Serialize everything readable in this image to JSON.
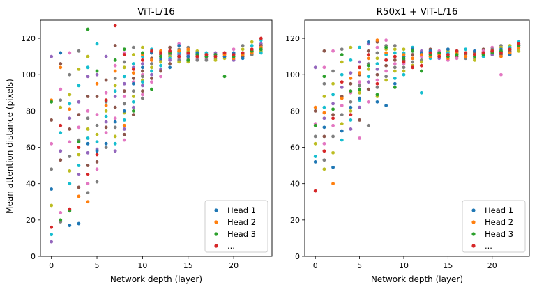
{
  "colors": [
    "#1f77b4",
    "#ff7f0e",
    "#2ca02c",
    "#d62728",
    "#9467bd",
    "#8c564b",
    "#e377c2",
    "#7f7f7f",
    "#bcbd22",
    "#17becf"
  ],
  "legend": [
    {
      "label": "Head 1",
      "color": "#1f77b4"
    },
    {
      "label": "Head 2",
      "color": "#ff7f0e"
    },
    {
      "label": "Head 3",
      "color": "#2ca02c"
    },
    {
      "label": "...",
      "color": "#d62728"
    }
  ],
  "chart_data": [
    {
      "type": "scatter",
      "title": "ViT-L/16",
      "xlabel": "Network depth (layer)",
      "ylabel": "Mean attention distance (pixels)",
      "xlim": [
        -1.2,
        24.2
      ],
      "ylim": [
        0,
        130
      ],
      "xticks": [
        0,
        5,
        10,
        15,
        20
      ],
      "yticks": [
        0,
        20,
        40,
        60,
        80,
        100,
        120
      ],
      "legend_position": "lower-right",
      "series": [
        {
          "name": "Head 1",
          "x": [
            0,
            1,
            2,
            3,
            4,
            5,
            6,
            7,
            8,
            9,
            10,
            11,
            12,
            13,
            14,
            15,
            16,
            17,
            18,
            19,
            20,
            21,
            22,
            23
          ],
          "y": [
            37,
            112,
            17,
            18,
            62,
            58,
            62,
            74,
            80,
            95,
            104,
            112,
            109,
            104,
            116,
            110,
            112,
            110,
            111,
            110,
            112,
            109,
            113,
            114
          ]
        },
        {
          "name": "Head 2",
          "x": [
            0,
            1,
            2,
            3,
            4,
            5,
            6,
            7,
            8,
            9,
            10,
            11,
            12,
            13,
            14,
            15,
            16,
            17,
            18,
            19,
            20,
            21,
            22,
            23
          ],
          "y": [
            86,
            104,
            81,
            33,
            30,
            95,
            83,
            102,
            72,
            101,
            111,
            108,
            113,
            112,
            113,
            114,
            110,
            111,
            110,
            111,
            109,
            111,
            112,
            115
          ]
        },
        {
          "name": "Head 3",
          "x": [
            0,
            1,
            2,
            3,
            4,
            5,
            6,
            7,
            8,
            9,
            10,
            11,
            12,
            13,
            14,
            15,
            16,
            17,
            18,
            19,
            20,
            21,
            22,
            23
          ],
          "y": [
            85,
            20,
            25,
            63,
            125,
            102,
            86,
            108,
            114,
            80,
            112,
            92,
            110,
            112,
            110,
            108,
            111,
            110,
            111,
            99,
            110,
            112,
            113,
            114
          ]
        },
        {
          "name": "...",
          "x": [
            0,
            1,
            2,
            3,
            4,
            5,
            6,
            7,
            8,
            9,
            10,
            11,
            12,
            13,
            14,
            15,
            16,
            17,
            18,
            19,
            20,
            21,
            22,
            23
          ],
          "y": [
            16,
            72,
            26,
            60,
            45,
            56,
            86,
            127,
            111,
            103,
            108,
            113,
            112,
            113,
            110,
            112,
            110,
            111,
            110,
            112,
            111,
            112,
            114,
            120
          ]
        }
      ],
      "other_heads": [
        {
          "x": 0,
          "y": [
            110,
            75,
            62,
            48,
            28,
            12,
            8
          ]
        },
        {
          "x": 1,
          "y": [
            106,
            92,
            86,
            82,
            68,
            58,
            53,
            24,
            19
          ]
        },
        {
          "x": 2,
          "y": [
            112,
            100,
            89,
            84,
            76,
            70,
            63,
            55,
            47,
            40
          ]
        },
        {
          "x": 3,
          "y": [
            113,
            103,
            94,
            85,
            78,
            71,
            64,
            56,
            50,
            45,
            38
          ]
        },
        {
          "x": 4,
          "y": [
            110,
            104,
            99,
            88,
            80,
            76,
            70,
            65,
            57,
            50,
            40,
            35
          ]
        },
        {
          "x": 5,
          "y": [
            117,
            100,
            88,
            78,
            72,
            67,
            63,
            59,
            52,
            48,
            41
          ]
        },
        {
          "x": 6,
          "y": [
            110,
            97,
            90,
            85,
            80,
            77,
            74,
            71,
            68,
            60
          ]
        },
        {
          "x": 7,
          "y": [
            116,
            105,
            98,
            94,
            91,
            88,
            82,
            76,
            71,
            66,
            62,
            58
          ]
        },
        {
          "x": 8,
          "y": [
            112,
            107,
            104,
            99,
            95,
            91,
            88,
            84,
            79,
            75,
            70,
            67,
            64
          ]
        },
        {
          "x": 9,
          "y": [
            115,
            111,
            106,
            104,
            98,
            96,
            91,
            88,
            85,
            82,
            78
          ]
        },
        {
          "x": 10,
          "y": [
            115,
            110,
            106,
            102,
            100,
            99,
            97,
            96,
            94,
            91,
            89,
            87
          ]
        },
        {
          "x": 11,
          "y": [
            114,
            112,
            109,
            108,
            106,
            104,
            102,
            100,
            98,
            96
          ]
        },
        {
          "x": 12,
          "y": [
            113,
            111,
            110,
            108,
            107,
            105,
            103,
            102,
            99
          ]
        },
        {
          "x": 13,
          "y": [
            115,
            113,
            111,
            110,
            109,
            108,
            106
          ]
        },
        {
          "x": 14,
          "y": [
            117,
            114,
            113,
            112,
            111,
            110,
            109,
            108,
            107
          ]
        },
        {
          "x": 15,
          "y": [
            115,
            113,
            112,
            111,
            110,
            109,
            108,
            107
          ]
        },
        {
          "x": 16,
          "y": [
            113,
            112,
            111,
            110,
            109,
            108
          ]
        },
        {
          "x": 17,
          "y": [
            112,
            111,
            110,
            109,
            108
          ]
        },
        {
          "x": 18,
          "y": [
            112,
            111,
            110,
            109,
            108
          ]
        },
        {
          "x": 19,
          "y": [
            112,
            111,
            110,
            109
          ]
        },
        {
          "x": 20,
          "y": [
            114,
            112,
            111,
            110,
            108
          ]
        },
        {
          "x": 21,
          "y": [
            116,
            114,
            112,
            111,
            110
          ]
        },
        {
          "x": 22,
          "y": [
            118,
            116,
            114,
            113,
            112,
            111
          ]
        },
        {
          "x": 23,
          "y": [
            119,
            117,
            116,
            115,
            114,
            113,
            112
          ]
        }
      ]
    },
    {
      "type": "scatter",
      "title": "R50x1 + ViT-L/16",
      "xlabel": "Network depth (layer)",
      "ylabel": "",
      "xlim": [
        -1.2,
        24.2
      ],
      "ylim": [
        0,
        130
      ],
      "xticks": [
        0,
        5,
        10,
        15,
        20
      ],
      "yticks": [
        0,
        20,
        40,
        60,
        80,
        100,
        120
      ],
      "legend_position": "lower-right",
      "series": [
        {
          "name": "Head 1",
          "x": [
            0,
            1,
            2,
            3,
            4,
            5,
            6,
            7,
            8,
            9,
            10,
            11,
            12,
            13,
            14,
            15,
            16,
            17,
            18,
            19,
            20,
            21,
            22,
            23
          ],
          "y": [
            52,
            71,
            49,
            69,
            82,
            87,
            118,
            85,
            83,
            95,
            110,
            114,
            112,
            113,
            112,
            114,
            113,
            112,
            113,
            112,
            113,
            114,
            111,
            116
          ]
        },
        {
          "name": "Head 2",
          "x": [
            0,
            1,
            2,
            3,
            4,
            5,
            6,
            7,
            8,
            9,
            10,
            11,
            12,
            13,
            14,
            15,
            16,
            17,
            18,
            19,
            20,
            21,
            22,
            23
          ],
          "y": [
            82,
            79,
            40,
            87,
            98,
            101,
            109,
            119,
            112,
            110,
            111,
            109,
            111,
            110,
            111,
            109,
            112,
            110,
            111,
            112,
            113,
            110,
            112,
            115
          ]
        },
        {
          "name": "Head 3",
          "x": [
            0,
            1,
            2,
            3,
            4,
            5,
            6,
            7,
            8,
            9,
            10,
            11,
            12,
            13,
            14,
            15,
            16,
            17,
            18,
            19,
            20,
            21,
            22,
            23
          ],
          "y": [
            72,
            99,
            81,
            111,
            91,
            92,
            105,
            89,
            115,
            93,
            109,
            113,
            102,
            111,
            112,
            110,
            111,
            112,
            110,
            111,
            112,
            113,
            114,
            116
          ]
        },
        {
          "name": "...",
          "x": [
            0,
            1,
            2,
            3,
            4,
            5,
            6,
            7,
            8,
            9,
            10,
            11,
            12,
            13,
            14,
            15,
            16,
            17,
            18,
            19,
            20,
            21,
            22,
            23
          ],
          "y": [
            36,
            58,
            76,
            96,
            78,
            104,
            111,
            95,
            108,
            110,
            107,
            104,
            105,
            112,
            110,
            111,
            113,
            112,
            111,
            112,
            113,
            112,
            114,
            117
          ]
        }
      ],
      "other_heads": [
        {
          "x": 0,
          "y": [
            104,
            80,
            73,
            66,
            62,
            55
          ]
        },
        {
          "x": 1,
          "y": [
            113,
            104,
            95,
            88,
            82,
            76,
            66,
            62,
            53,
            48
          ]
        },
        {
          "x": 2,
          "y": [
            113,
            102,
            95,
            89,
            84,
            78,
            72,
            66,
            57
          ]
        },
        {
          "x": 3,
          "y": [
            114,
            107,
            100,
            93,
            88,
            83,
            78,
            73,
            64
          ]
        },
        {
          "x": 4,
          "y": [
            115,
            108,
            101,
            95,
            90,
            85,
            80,
            75,
            70
          ]
        },
        {
          "x": 5,
          "y": [
            115,
            107,
            100,
            96,
            94,
            90,
            86,
            82,
            75,
            65
          ]
        },
        {
          "x": 6,
          "y": [
            117,
            113,
            109,
            106,
            103,
            99,
            96,
            92,
            85,
            72
          ]
        },
        {
          "x": 7,
          "y": [
            118,
            115,
            112,
            109,
            106,
            103,
            100,
            97,
            93,
            88
          ]
        },
        {
          "x": 8,
          "y": [
            119,
            116,
            114,
            111,
            108,
            105,
            102,
            99,
            97
          ]
        },
        {
          "x": 9,
          "y": [
            116,
            114,
            112,
            110,
            108,
            106,
            104,
            102,
            98
          ]
        },
        {
          "x": 10,
          "y": [
            114,
            112,
            110,
            108,
            106,
            104,
            102,
            100
          ]
        },
        {
          "x": 11,
          "y": [
            115,
            113,
            111,
            109,
            107,
            105
          ]
        },
        {
          "x": 12,
          "y": [
            113,
            111,
            110,
            108,
            107,
            90
          ]
        },
        {
          "x": 13,
          "y": [
            114,
            112,
            111,
            110,
            109
          ]
        },
        {
          "x": 14,
          "y": [
            113,
            112,
            111,
            110,
            109
          ]
        },
        {
          "x": 15,
          "y": [
            114,
            113,
            112,
            111,
            110,
            108
          ]
        },
        {
          "x": 16,
          "y": [
            113,
            112,
            111,
            110,
            109
          ]
        },
        {
          "x": 17,
          "y": [
            114,
            112,
            111,
            110,
            109
          ]
        },
        {
          "x": 18,
          "y": [
            113,
            112,
            111,
            109,
            108
          ]
        },
        {
          "x": 19,
          "y": [
            114,
            113,
            112,
            111,
            110
          ]
        },
        {
          "x": 20,
          "y": [
            115,
            114,
            113,
            112,
            111
          ]
        },
        {
          "x": 21,
          "y": [
            116,
            115,
            113,
            112,
            111,
            100
          ]
        },
        {
          "x": 22,
          "y": [
            116,
            115,
            114,
            113,
            112
          ]
        },
        {
          "x": 23,
          "y": [
            118,
            117,
            116,
            115,
            114,
            113
          ]
        }
      ]
    }
  ]
}
